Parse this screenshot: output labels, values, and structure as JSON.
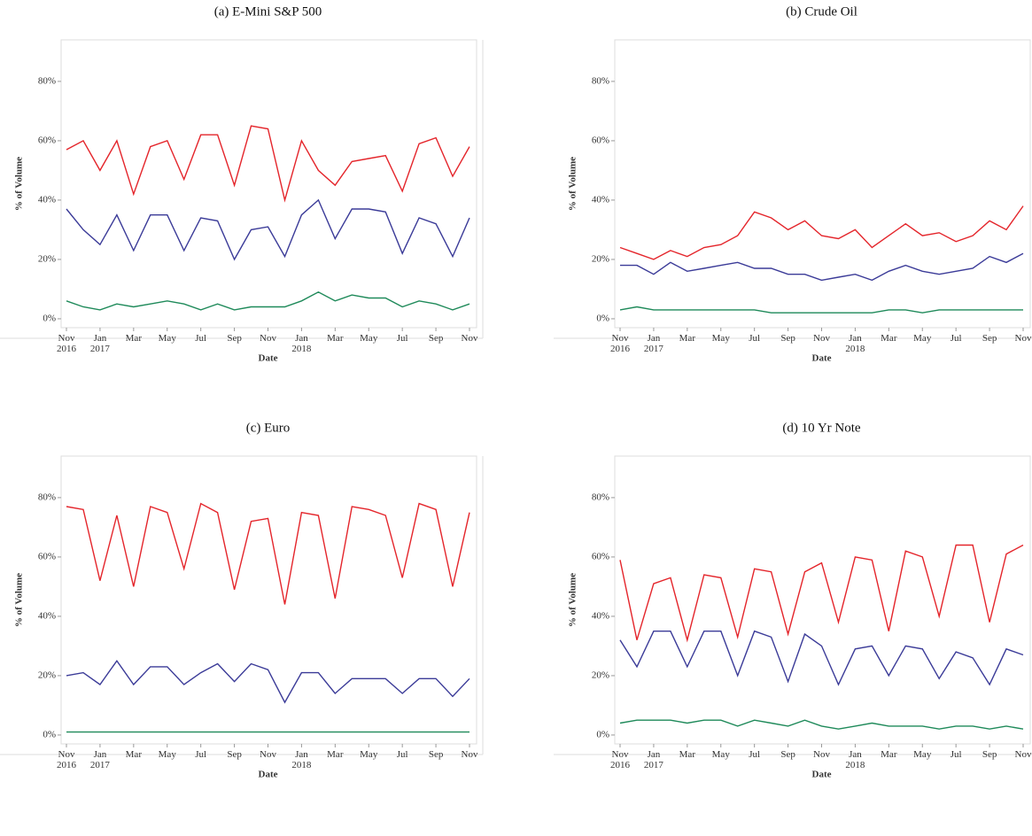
{
  "chart_data": [
    {
      "type": "line",
      "title": "(a) E-Mini S&P 500",
      "x_label": "Date",
      "y_label": "% of Volume",
      "x": [
        "2016-11",
        "2016-12",
        "2017-01",
        "2017-02",
        "2017-03",
        "2017-04",
        "2017-05",
        "2017-06",
        "2017-07",
        "2017-08",
        "2017-09",
        "2017-10",
        "2017-11",
        "2017-12",
        "2018-01",
        "2018-02",
        "2018-03",
        "2018-04",
        "2018-05",
        "2018-06",
        "2018-07",
        "2018-08",
        "2018-09",
        "2018-10",
        "2018-11"
      ],
      "series": [
        {
          "color": "#e4252b",
          "values": [
            57,
            60,
            50,
            60,
            42,
            58,
            60,
            47,
            62,
            62,
            45,
            65,
            64,
            40,
            60,
            50,
            45,
            53,
            54,
            55,
            43,
            59,
            61,
            48,
            58
          ]
        },
        {
          "color": "#3b3b98",
          "values": [
            37,
            30,
            25,
            35,
            23,
            35,
            35,
            23,
            34,
            33,
            20,
            30,
            31,
            21,
            35,
            40,
            27,
            37,
            37,
            36,
            22,
            34,
            32,
            21,
            34
          ]
        },
        {
          "color": "#1f8a5a",
          "values": [
            6,
            4,
            3,
            5,
            4,
            5,
            6,
            5,
            3,
            5,
            3,
            4,
            4,
            4,
            6,
            9,
            6,
            8,
            7,
            7,
            4,
            6,
            5,
            3,
            5
          ]
        }
      ],
      "xlim": [
        "2016-11",
        "2018-11"
      ],
      "xticks": [
        {
          "value": "2016-11",
          "label": "Nov 2016"
        },
        {
          "value": "2017-01",
          "label": "Jan 2017"
        },
        {
          "value": "2017-03",
          "label": "Mar"
        },
        {
          "value": "2017-05",
          "label": "May"
        },
        {
          "value": "2017-07",
          "label": "Jul"
        },
        {
          "value": "2017-09",
          "label": "Sep"
        },
        {
          "value": "2017-11",
          "label": "Nov"
        },
        {
          "value": "2018-01",
          "label": "Jan 2018"
        },
        {
          "value": "2018-03",
          "label": "Mar"
        },
        {
          "value": "2018-05",
          "label": "May"
        },
        {
          "value": "2018-07",
          "label": "Jul"
        },
        {
          "value": "2018-09",
          "label": "Sep"
        },
        {
          "value": "2018-11",
          "label": "Nov"
        }
      ],
      "ylim": [
        -3,
        94
      ],
      "yticks": [
        {
          "value": 0,
          "label": "0%"
        },
        {
          "value": 20,
          "label": "20%"
        },
        {
          "value": 40,
          "label": "40%"
        },
        {
          "value": 60,
          "label": "60%"
        },
        {
          "value": 80,
          "label": "80%"
        }
      ]
    },
    {
      "type": "line",
      "title": "(b) Crude Oil",
      "x_label": "Date",
      "y_label": "% of Volume",
      "x": [
        "2016-11",
        "2016-12",
        "2017-01",
        "2017-02",
        "2017-03",
        "2017-04",
        "2017-05",
        "2017-06",
        "2017-07",
        "2017-08",
        "2017-09",
        "2017-10",
        "2017-11",
        "2017-12",
        "2018-01",
        "2018-02",
        "2018-03",
        "2018-04",
        "2018-05",
        "2018-06",
        "2018-07",
        "2018-08",
        "2018-09",
        "2018-10",
        "2018-11"
      ],
      "series": [
        {
          "color": "#e4252b",
          "values": [
            24,
            22,
            20,
            23,
            21,
            24,
            25,
            28,
            36,
            34,
            30,
            33,
            28,
            27,
            30,
            24,
            28,
            32,
            28,
            29,
            26,
            28,
            33,
            30,
            38
          ]
        },
        {
          "color": "#3b3b98",
          "values": [
            18,
            18,
            15,
            19,
            16,
            17,
            18,
            19,
            17,
            17,
            15,
            15,
            13,
            14,
            15,
            13,
            16,
            18,
            16,
            15,
            16,
            17,
            21,
            19,
            22
          ]
        },
        {
          "color": "#1f8a5a",
          "values": [
            3,
            4,
            3,
            3,
            3,
            3,
            3,
            3,
            3,
            2,
            2,
            2,
            2,
            2,
            2,
            2,
            3,
            3,
            2,
            3,
            3,
            3,
            3,
            3,
            3
          ]
        }
      ],
      "xlim": [
        "2016-11",
        "2018-11"
      ],
      "xticks": [
        {
          "value": "2016-11",
          "label": "Nov 2016"
        },
        {
          "value": "2017-01",
          "label": "Jan 2017"
        },
        {
          "value": "2017-03",
          "label": "Mar"
        },
        {
          "value": "2017-05",
          "label": "May"
        },
        {
          "value": "2017-07",
          "label": "Jul"
        },
        {
          "value": "2017-09",
          "label": "Sep"
        },
        {
          "value": "2017-11",
          "label": "Nov"
        },
        {
          "value": "2018-01",
          "label": "Jan 2018"
        },
        {
          "value": "2018-03",
          "label": "Mar"
        },
        {
          "value": "2018-05",
          "label": "May"
        },
        {
          "value": "2018-07",
          "label": "Jul"
        },
        {
          "value": "2018-09",
          "label": "Sep"
        },
        {
          "value": "2018-11",
          "label": "Nov"
        }
      ],
      "ylim": [
        -3,
        94
      ],
      "yticks": [
        {
          "value": 0,
          "label": "0%"
        },
        {
          "value": 20,
          "label": "20%"
        },
        {
          "value": 40,
          "label": "40%"
        },
        {
          "value": 60,
          "label": "60%"
        },
        {
          "value": 80,
          "label": "80%"
        }
      ]
    },
    {
      "type": "line",
      "title": "(c) Euro",
      "x_label": "Date",
      "y_label": "% of Volume",
      "x": [
        "2016-11",
        "2016-12",
        "2017-01",
        "2017-02",
        "2017-03",
        "2017-04",
        "2017-05",
        "2017-06",
        "2017-07",
        "2017-08",
        "2017-09",
        "2017-10",
        "2017-11",
        "2017-12",
        "2018-01",
        "2018-02",
        "2018-03",
        "2018-04",
        "2018-05",
        "2018-06",
        "2018-07",
        "2018-08",
        "2018-09",
        "2018-10",
        "2018-11"
      ],
      "series": [
        {
          "color": "#e4252b",
          "values": [
            77,
            76,
            52,
            74,
            50,
            77,
            75,
            56,
            78,
            75,
            49,
            72,
            73,
            44,
            75,
            74,
            46,
            77,
            76,
            74,
            53,
            78,
            76,
            50,
            75
          ]
        },
        {
          "color": "#3b3b98",
          "values": [
            20,
            21,
            17,
            25,
            17,
            23,
            23,
            17,
            21,
            24,
            18,
            24,
            22,
            11,
            21,
            21,
            14,
            19,
            19,
            19,
            14,
            19,
            19,
            13,
            19
          ]
        },
        {
          "color": "#1f8a5a",
          "values": [
            1,
            1,
            1,
            1,
            1,
            1,
            1,
            1,
            1,
            1,
            1,
            1,
            1,
            1,
            1,
            1,
            1,
            1,
            1,
            1,
            1,
            1,
            1,
            1,
            1
          ]
        }
      ],
      "xlim": [
        "2016-11",
        "2018-11"
      ],
      "xticks": [
        {
          "value": "2016-11",
          "label": "Nov 2016"
        },
        {
          "value": "2017-01",
          "label": "Jan 2017"
        },
        {
          "value": "2017-03",
          "label": "Mar"
        },
        {
          "value": "2017-05",
          "label": "May"
        },
        {
          "value": "2017-07",
          "label": "Jul"
        },
        {
          "value": "2017-09",
          "label": "Sep"
        },
        {
          "value": "2017-11",
          "label": "Nov"
        },
        {
          "value": "2018-01",
          "label": "Jan 2018"
        },
        {
          "value": "2018-03",
          "label": "Mar"
        },
        {
          "value": "2018-05",
          "label": "May"
        },
        {
          "value": "2018-07",
          "label": "Jul"
        },
        {
          "value": "2018-09",
          "label": "Sep"
        },
        {
          "value": "2018-11",
          "label": "Nov"
        }
      ],
      "ylim": [
        -3,
        94
      ],
      "yticks": [
        {
          "value": 0,
          "label": "0%"
        },
        {
          "value": 20,
          "label": "20%"
        },
        {
          "value": 40,
          "label": "40%"
        },
        {
          "value": 60,
          "label": "60%"
        },
        {
          "value": 80,
          "label": "80%"
        }
      ]
    },
    {
      "type": "line",
      "title": "(d) 10 Yr Note",
      "x_label": "Date",
      "y_label": "% of Volume",
      "x": [
        "2016-11",
        "2016-12",
        "2017-01",
        "2017-02",
        "2017-03",
        "2017-04",
        "2017-05",
        "2017-06",
        "2017-07",
        "2017-08",
        "2017-09",
        "2017-10",
        "2017-11",
        "2017-12",
        "2018-01",
        "2018-02",
        "2018-03",
        "2018-04",
        "2018-05",
        "2018-06",
        "2018-07",
        "2018-08",
        "2018-09",
        "2018-10",
        "2018-11"
      ],
      "series": [
        {
          "color": "#e4252b",
          "values": [
            59,
            32,
            51,
            53,
            32,
            54,
            53,
            33,
            56,
            55,
            34,
            55,
            58,
            38,
            60,
            59,
            35,
            62,
            60,
            40,
            64,
            64,
            38,
            61,
            64
          ]
        },
        {
          "color": "#3b3b98",
          "values": [
            32,
            23,
            35,
            35,
            23,
            35,
            35,
            20,
            35,
            33,
            18,
            34,
            30,
            17,
            29,
            30,
            20,
            30,
            29,
            19,
            28,
            26,
            17,
            29,
            27
          ]
        },
        {
          "color": "#1f8a5a",
          "values": [
            4,
            5,
            5,
            5,
            4,
            5,
            5,
            3,
            5,
            4,
            3,
            5,
            3,
            2,
            3,
            4,
            3,
            3,
            3,
            2,
            3,
            3,
            2,
            3,
            2
          ]
        }
      ],
      "xlim": [
        "2016-11",
        "2018-11"
      ],
      "xticks": [
        {
          "value": "2016-11",
          "label": "Nov 2016"
        },
        {
          "value": "2017-01",
          "label": "Jan 2017"
        },
        {
          "value": "2017-03",
          "label": "Mar"
        },
        {
          "value": "2017-05",
          "label": "May"
        },
        {
          "value": "2017-07",
          "label": "Jul"
        },
        {
          "value": "2017-09",
          "label": "Sep"
        },
        {
          "value": "2017-11",
          "label": "Nov"
        },
        {
          "value": "2018-01",
          "label": "Jan 2018"
        },
        {
          "value": "2018-03",
          "label": "Mar"
        },
        {
          "value": "2018-05",
          "label": "May"
        },
        {
          "value": "2018-07",
          "label": "Jul"
        },
        {
          "value": "2018-09",
          "label": "Sep"
        },
        {
          "value": "2018-11",
          "label": "Nov"
        }
      ],
      "ylim": [
        -3,
        94
      ],
      "yticks": [
        {
          "value": 0,
          "label": "0%"
        },
        {
          "value": 20,
          "label": "20%"
        },
        {
          "value": 40,
          "label": "40%"
        },
        {
          "value": 60,
          "label": "60%"
        },
        {
          "value": 80,
          "label": "80%"
        }
      ]
    }
  ]
}
